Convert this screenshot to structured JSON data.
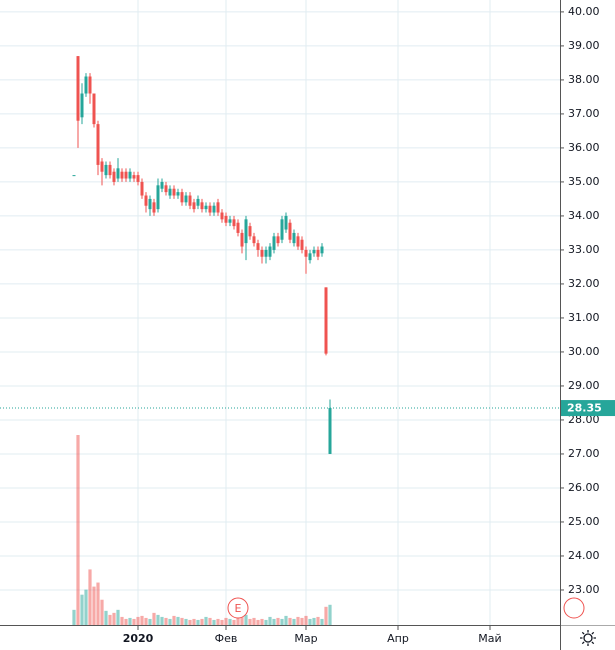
{
  "chart_data": {
    "type": "candlestick",
    "x": [
      -1,
      0,
      1,
      2,
      3,
      4,
      5,
      6,
      7,
      8,
      9,
      10,
      11,
      12,
      13,
      14,
      15,
      16,
      17,
      18,
      19,
      20,
      21,
      22,
      23,
      24,
      25,
      26,
      27,
      28,
      29,
      30,
      31,
      32,
      33,
      34,
      35,
      36,
      37,
      38,
      39,
      40,
      41,
      42,
      43,
      44,
      45,
      46,
      47,
      48,
      49,
      50,
      51,
      52,
      53,
      54,
      55,
      56,
      57,
      58,
      59,
      60,
      61,
      62,
      63
    ],
    "open": [
      35.2,
      38.7,
      36.9,
      37.6,
      38.1,
      37.6,
      36.7,
      35.6,
      35.2,
      35.5,
      35.3,
      35.1,
      35.3,
      35.3,
      35.1,
      35.2,
      35.2,
      35.0,
      34.6,
      34.2,
      34.4,
      34.2,
      34.8,
      34.9,
      34.6,
      34.8,
      34.6,
      34.7,
      34.4,
      34.6,
      34.4,
      34.3,
      34.4,
      34.2,
      34.3,
      34.1,
      34.4,
      34.1,
      34.0,
      33.8,
      33.9,
      33.8,
      33.5,
      33.2,
      33.7,
      33.4,
      33.2,
      33.0,
      32.8,
      32.8,
      33.0,
      33.4,
      33.3,
      33.6,
      33.8,
      33.2,
      33.4,
      33.3,
      33.0,
      32.7,
      32.9,
      33.0,
      32.9,
      31.9,
      27.0
    ],
    "high": [
      35.2,
      38.7,
      37.9,
      38.2,
      38.2,
      37.6,
      36.8,
      35.7,
      35.6,
      35.6,
      35.4,
      35.7,
      35.4,
      35.4,
      35.4,
      35.3,
      35.3,
      35.1,
      34.7,
      34.6,
      34.5,
      35.1,
      35.1,
      35.0,
      34.9,
      34.9,
      34.8,
      34.8,
      34.7,
      34.7,
      34.5,
      34.6,
      34.5,
      34.4,
      34.4,
      34.4,
      34.5,
      34.2,
      34.1,
      34.0,
      34.0,
      33.9,
      33.6,
      34.0,
      33.8,
      33.5,
      33.3,
      33.1,
      33.1,
      33.2,
      33.5,
      33.5,
      34.0,
      34.1,
      33.9,
      33.6,
      33.5,
      33.4,
      33.1,
      33.0,
      33.1,
      33.1,
      33.2,
      31.9,
      28.6
    ],
    "low": [
      35.2,
      36.0,
      36.7,
      37.5,
      37.3,
      36.6,
      35.2,
      34.9,
      35.1,
      35.1,
      34.9,
      35.0,
      35.0,
      35.0,
      35.0,
      35.0,
      34.9,
      34.5,
      34.1,
      34.0,
      34.0,
      34.1,
      34.7,
      34.6,
      34.5,
      34.5,
      34.5,
      34.3,
      34.3,
      34.2,
      34.1,
      34.2,
      34.1,
      34.1,
      34.0,
      34.0,
      34.0,
      33.8,
      33.7,
      33.7,
      33.6,
      33.4,
      32.9,
      32.7,
      33.3,
      33.1,
      32.8,
      32.6,
      32.6,
      32.7,
      32.9,
      33.1,
      33.2,
      33.5,
      33.2,
      33.1,
      33.0,
      32.9,
      32.3,
      32.6,
      32.8,
      32.7,
      32.8,
      29.9,
      27.0
    ],
    "close": [
      35.2,
      36.8,
      37.6,
      38.1,
      37.6,
      36.7,
      35.5,
      35.3,
      35.5,
      35.2,
      35.0,
      35.4,
      35.1,
      35.1,
      35.3,
      35.1,
      35.0,
      34.6,
      34.3,
      34.5,
      34.1,
      34.9,
      35.0,
      34.7,
      34.8,
      34.6,
      34.7,
      34.4,
      34.6,
      34.3,
      34.2,
      34.5,
      34.2,
      34.3,
      34.1,
      34.3,
      34.1,
      33.9,
      33.8,
      33.9,
      33.7,
      33.5,
      33.1,
      33.9,
      33.4,
      33.2,
      33.0,
      32.8,
      33.0,
      33.1,
      33.4,
      33.2,
      33.9,
      34.0,
      33.3,
      33.5,
      33.1,
      33.0,
      32.8,
      32.9,
      33.0,
      32.8,
      33.1,
      29.95,
      28.35
    ],
    "volume": [
      15,
      188,
      30,
      35,
      55,
      38,
      42,
      25,
      14,
      10,
      12,
      15,
      8,
      6,
      7,
      6,
      8,
      9,
      7,
      6,
      12,
      10,
      8,
      7,
      6,
      9,
      8,
      7,
      6,
      5,
      6,
      5,
      6,
      8,
      7,
      5,
      6,
      5,
      7,
      6,
      5,
      8,
      9,
      10,
      6,
      7,
      5,
      6,
      5,
      8,
      6,
      7,
      6,
      9,
      7,
      6,
      8,
      7,
      9,
      6,
      7,
      8,
      6,
      18,
      20
    ],
    "up_color": "#26a69a",
    "down_color": "#ef5350",
    "ylim": [
      21.97,
      40.35
    ],
    "yticks": [
      {
        "value": 23,
        "label": "23.00"
      },
      {
        "value": 24,
        "label": "24.00"
      },
      {
        "value": 25,
        "label": "25.00"
      },
      {
        "value": 26,
        "label": "26.00"
      },
      {
        "value": 27,
        "label": "27.00"
      },
      {
        "value": 28,
        "label": "28.00"
      },
      {
        "value": 29,
        "label": "29.00"
      },
      {
        "value": 30,
        "label": "30.00"
      },
      {
        "value": 31,
        "label": "31.00"
      },
      {
        "value": 32,
        "label": "32.00"
      },
      {
        "value": 33,
        "label": "33.00"
      },
      {
        "value": 34,
        "label": "34.00"
      },
      {
        "value": 35,
        "label": "35.00"
      },
      {
        "value": 36,
        "label": "36.00"
      },
      {
        "value": 37,
        "label": "37.00"
      },
      {
        "value": 38,
        "label": "38.00"
      },
      {
        "value": 39,
        "label": "39.00"
      },
      {
        "value": 40,
        "label": "40.00"
      }
    ],
    "xlim": [
      -19.5,
      120.5
    ],
    "xticks": [
      {
        "value": 15,
        "label": "2020"
      },
      {
        "value": 37,
        "label": "Фев"
      },
      {
        "value": 57,
        "label": "Мар"
      },
      {
        "value": 80,
        "label": "Апр"
      },
      {
        "value": 103,
        "label": "Май"
      }
    ],
    "last_price": 28.35,
    "annotations": [
      "E"
    ],
    "grid": true
  }
}
